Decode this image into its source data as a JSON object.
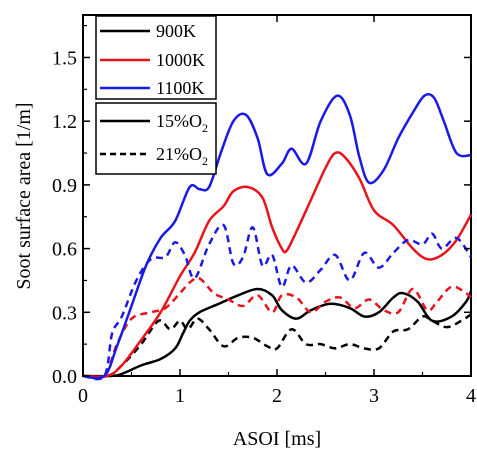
{
  "chart_data": {
    "type": "line",
    "xlabel": "ASOI [ms]",
    "ylabel": "Soot surface area [1/m]",
    "xlim": [
      0,
      4
    ],
    "ylim": [
      0,
      1.7
    ],
    "x_ticks": [
      0,
      1,
      2,
      3,
      4
    ],
    "y_ticks": [
      0.0,
      0.3,
      0.6,
      0.9,
      1.2,
      1.5
    ],
    "x_tick_labels": [
      "0",
      "1",
      "2",
      "3",
      "4"
    ],
    "y_tick_labels": [
      "0.0",
      "0.3",
      "0.6",
      "0.9",
      "1.2",
      "1.5"
    ],
    "grid": false,
    "legend_placement": "top-left",
    "legend_temperature": [
      {
        "label": "900K",
        "color": "#000000"
      },
      {
        "label": "1000K",
        "color": "#e8141b"
      },
      {
        "label": "1100K",
        "color": "#1a1ae6"
      }
    ],
    "legend_oxygen": [
      {
        "label": "15%O",
        "sub": "2",
        "style": "solid"
      },
      {
        "label": "21%O",
        "sub": "2",
        "style": "dashed"
      }
    ],
    "series": [
      {
        "temperature": "900K",
        "oxygen": "15%O2",
        "color": "#000000",
        "style": "solid",
        "x": [
          0,
          0.28,
          0.4,
          0.6,
          0.8,
          0.95,
          1.03,
          1.1,
          1.2,
          1.4,
          1.6,
          1.8,
          1.95,
          2.05,
          2.2,
          2.35,
          2.55,
          2.75,
          2.9,
          3.05,
          3.2,
          3.3,
          3.45,
          3.6,
          3.8,
          3.95,
          4.0
        ],
        "y": [
          0,
          0,
          0.01,
          0.05,
          0.08,
          0.13,
          0.2,
          0.26,
          0.3,
          0.34,
          0.38,
          0.41,
          0.38,
          0.31,
          0.27,
          0.31,
          0.34,
          0.32,
          0.28,
          0.3,
          0.37,
          0.39,
          0.35,
          0.26,
          0.28,
          0.35,
          0.4
        ]
      },
      {
        "temperature": "900K",
        "oxygen": "21%O2",
        "color": "#000000",
        "style": "dashed",
        "x": [
          0,
          0.25,
          0.4,
          0.6,
          0.78,
          0.9,
          1.0,
          1.08,
          1.18,
          1.3,
          1.45,
          1.6,
          1.75,
          1.9,
          2.0,
          2.15,
          2.3,
          2.45,
          2.6,
          2.75,
          2.9,
          3.05,
          3.2,
          3.35,
          3.5,
          3.6,
          3.75,
          3.9,
          4.0
        ],
        "y": [
          0,
          0,
          0.05,
          0.15,
          0.26,
          0.22,
          0.26,
          0.22,
          0.27,
          0.22,
          0.14,
          0.18,
          0.18,
          0.14,
          0.13,
          0.22,
          0.15,
          0.15,
          0.13,
          0.15,
          0.13,
          0.13,
          0.21,
          0.22,
          0.28,
          0.26,
          0.23,
          0.26,
          0.29
        ]
      },
      {
        "temperature": "1000K",
        "oxygen": "15%O2",
        "color": "#e8141b",
        "style": "solid",
        "x": [
          0,
          0.25,
          0.4,
          0.6,
          0.8,
          1.0,
          1.15,
          1.3,
          1.45,
          1.55,
          1.7,
          1.85,
          1.95,
          2.05,
          2.1,
          2.2,
          2.35,
          2.5,
          2.6,
          2.7,
          2.85,
          3.0,
          3.2,
          3.4,
          3.55,
          3.7,
          3.85,
          4.0
        ],
        "y": [
          0,
          0,
          0.05,
          0.17,
          0.3,
          0.47,
          0.58,
          0.73,
          0.8,
          0.87,
          0.89,
          0.84,
          0.7,
          0.6,
          0.59,
          0.68,
          0.83,
          0.98,
          1.05,
          1.03,
          0.93,
          0.78,
          0.71,
          0.6,
          0.55,
          0.57,
          0.64,
          0.76
        ]
      },
      {
        "temperature": "1000K",
        "oxygen": "21%O2",
        "color": "#e8141b",
        "style": "dashed",
        "x": [
          0,
          0.22,
          0.35,
          0.5,
          0.7,
          0.85,
          1.0,
          1.1,
          1.2,
          1.35,
          1.5,
          1.65,
          1.8,
          1.95,
          2.05,
          2.2,
          2.35,
          2.5,
          2.65,
          2.8,
          2.95,
          3.1,
          3.25,
          3.4,
          3.55,
          3.65,
          3.8,
          3.95,
          4.0
        ],
        "y": [
          0,
          0,
          0.15,
          0.27,
          0.3,
          0.32,
          0.39,
          0.44,
          0.46,
          0.39,
          0.36,
          0.33,
          0.38,
          0.3,
          0.38,
          0.37,
          0.3,
          0.35,
          0.37,
          0.32,
          0.36,
          0.31,
          0.3,
          0.41,
          0.31,
          0.35,
          0.42,
          0.39,
          0.37
        ]
      },
      {
        "temperature": "1100K",
        "oxygen": "15%O2",
        "color": "#1a1ae6",
        "style": "solid",
        "x": [
          0,
          0.22,
          0.35,
          0.5,
          0.65,
          0.8,
          0.95,
          1.1,
          1.2,
          1.3,
          1.42,
          1.55,
          1.68,
          1.8,
          1.9,
          2.05,
          2.15,
          2.3,
          2.45,
          2.62,
          2.75,
          2.85,
          2.95,
          3.1,
          3.25,
          3.4,
          3.52,
          3.62,
          3.72,
          3.85,
          4.0
        ],
        "y": [
          0,
          0,
          0.14,
          0.33,
          0.52,
          0.65,
          0.73,
          0.89,
          0.88,
          0.89,
          1.05,
          1.2,
          1.23,
          1.12,
          0.95,
          1.0,
          1.07,
          1.0,
          1.2,
          1.32,
          1.23,
          1.03,
          0.91,
          0.97,
          1.12,
          1.24,
          1.32,
          1.31,
          1.2,
          1.05,
          1.04
        ]
      },
      {
        "temperature": "1100K",
        "oxygen": "21%O2",
        "color": "#1a1ae6",
        "style": "dashed",
        "x": [
          0,
          0.22,
          0.3,
          0.4,
          0.55,
          0.7,
          0.85,
          0.95,
          1.05,
          1.15,
          1.3,
          1.45,
          1.55,
          1.65,
          1.75,
          1.85,
          1.95,
          2.05,
          2.15,
          2.3,
          2.45,
          2.6,
          2.75,
          2.9,
          3.05,
          3.2,
          3.35,
          3.5,
          3.6,
          3.7,
          3.85,
          4.0
        ],
        "y": [
          0,
          0,
          0.2,
          0.28,
          0.45,
          0.55,
          0.56,
          0.63,
          0.57,
          0.46,
          0.62,
          0.71,
          0.53,
          0.56,
          0.7,
          0.52,
          0.57,
          0.42,
          0.52,
          0.44,
          0.5,
          0.57,
          0.45,
          0.58,
          0.51,
          0.58,
          0.64,
          0.62,
          0.67,
          0.6,
          0.65,
          0.56
        ]
      }
    ]
  }
}
